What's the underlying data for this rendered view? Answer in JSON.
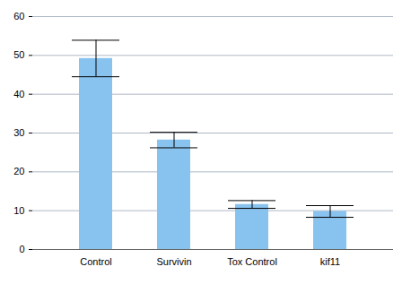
{
  "chart_data": {
    "type": "bar",
    "categories": [
      "Control",
      "Survivin",
      "Tox Control",
      "kif11"
    ],
    "values": [
      49.2,
      28.2,
      11.6,
      9.8
    ],
    "errors": [
      4.7,
      2.0,
      1.0,
      1.5
    ],
    "color": "#88c2ee",
    "ylim": [
      0,
      60
    ],
    "yticks": [
      0,
      10,
      20,
      30,
      40,
      50,
      60
    ],
    "grid": true
  }
}
